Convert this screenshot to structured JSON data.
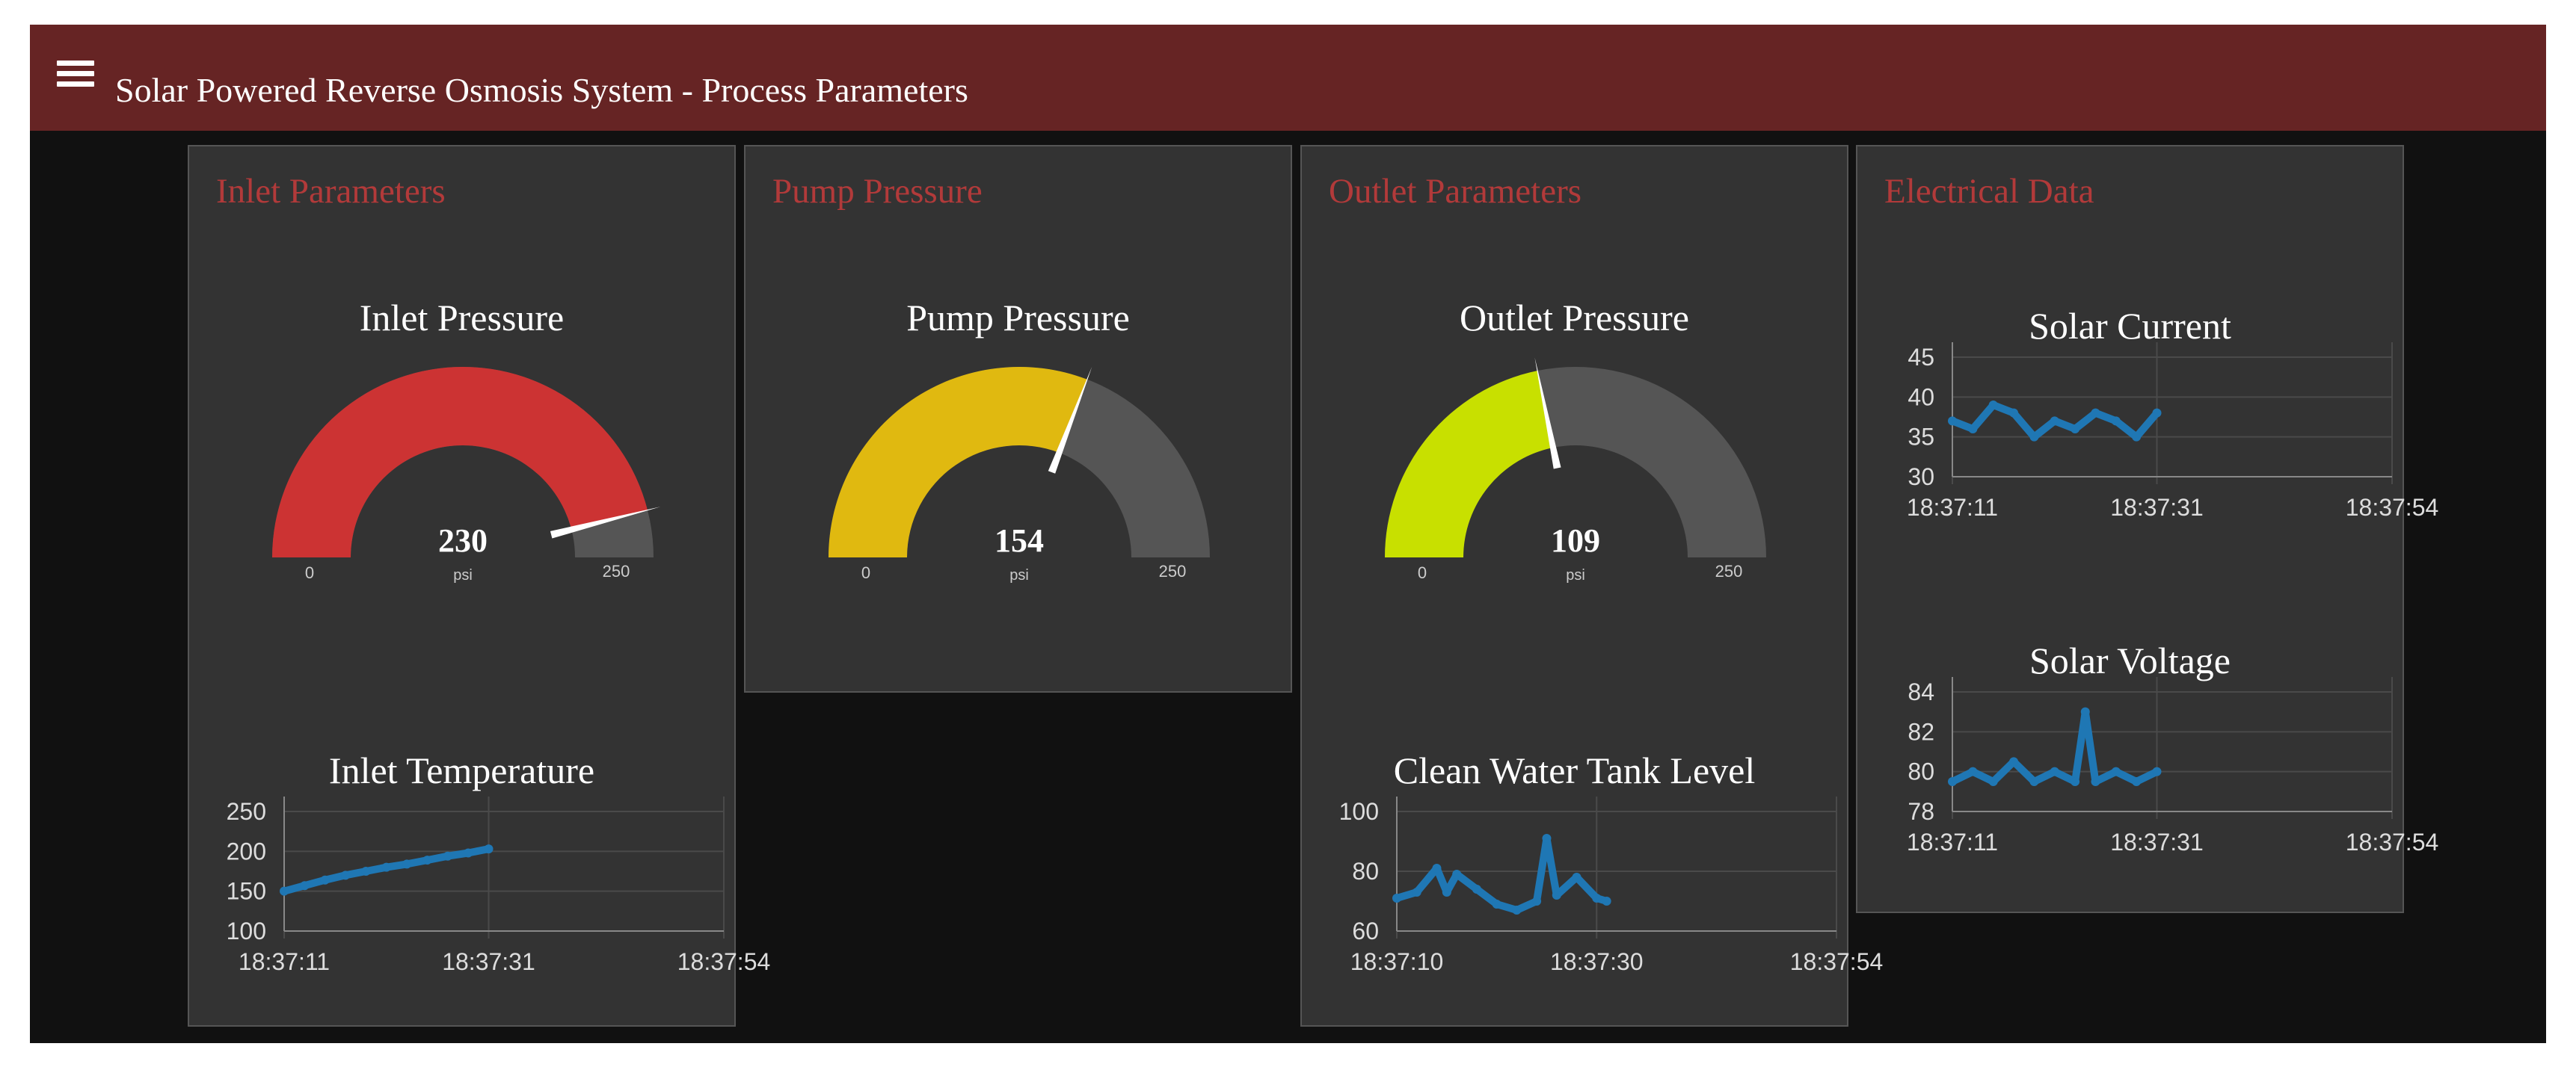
{
  "header": {
    "title": "Solar Powered Reverse Osmosis System - Process Parameters"
  },
  "cards": {
    "inlet": {
      "title": "Inlet Parameters",
      "gauge": {
        "label": "Inlet Pressure",
        "value": 230,
        "min": 0,
        "max": 250,
        "units": "psi",
        "color": "#cc3333"
      },
      "chart_title": "Inlet Temperature"
    },
    "pump": {
      "title": "Pump Pressure",
      "gauge": {
        "label": "Pump Pressure",
        "value": 154,
        "min": 0,
        "max": 250,
        "units": "psi",
        "color": "#e0b910"
      }
    },
    "outlet": {
      "title": "Outlet Parameters",
      "gauge": {
        "label": "Outlet Pressure",
        "value": 109,
        "min": 0,
        "max": 250,
        "units": "psi",
        "color": "#c8e000"
      },
      "chart_title": "Clean Water Tank Level"
    },
    "electrical": {
      "title": "Electrical Data",
      "chart_current_title": "Solar Current",
      "chart_voltage_title": "Solar Voltage"
    }
  },
  "colors": {
    "toolbar": "#662424",
    "card_header": "#b23a3a",
    "gauge_background": "#555555",
    "series": "#1f77b4"
  },
  "chart_data": [
    {
      "id": "inlet_temperature",
      "type": "line",
      "title": "Inlet Temperature",
      "x": [
        "18:37:11",
        "18:37:13",
        "18:37:15",
        "18:37:17",
        "18:37:19",
        "18:37:21",
        "18:37:23",
        "18:37:25",
        "18:37:27",
        "18:37:29",
        "18:37:31"
      ],
      "series": [
        {
          "values": [
            150,
            157,
            164,
            170,
            175,
            180,
            184,
            189,
            194,
            198,
            203
          ]
        }
      ],
      "ylim": [
        100,
        250
      ],
      "yticks": [
        100,
        150,
        200,
        250
      ],
      "xticks": [
        "18:37:11",
        "18:37:31",
        "18:37:54"
      ],
      "grid": true
    },
    {
      "id": "clean_water_tank_level",
      "type": "line",
      "title": "Clean Water Tank Level",
      "x": [
        "18:37:10",
        "18:37:12",
        "18:37:14",
        "18:37:15",
        "18:37:16",
        "18:37:18",
        "18:37:20",
        "18:37:22",
        "18:37:24",
        "18:37:25",
        "18:37:26",
        "18:37:28",
        "18:37:30",
        "18:37:31"
      ],
      "series": [
        {
          "values": [
            71,
            73,
            81,
            73,
            79,
            74,
            69,
            67,
            70,
            91,
            72,
            78,
            71,
            70
          ]
        }
      ],
      "ylim": [
        60,
        100
      ],
      "yticks": [
        60,
        80,
        100
      ],
      "xticks": [
        "18:37:10",
        "18:37:30",
        "18:37:54"
      ],
      "grid": true
    },
    {
      "id": "solar_current",
      "type": "line",
      "title": "Solar Current",
      "x": [
        "18:37:11",
        "18:37:13",
        "18:37:15",
        "18:37:17",
        "18:37:19",
        "18:37:21",
        "18:37:23",
        "18:37:25",
        "18:37:27",
        "18:37:29",
        "18:37:31"
      ],
      "series": [
        {
          "values": [
            37,
            36,
            39,
            38,
            35,
            37,
            36,
            38,
            37,
            35,
            38
          ]
        }
      ],
      "ylim": [
        30,
        45
      ],
      "yticks": [
        30,
        35,
        40,
        45
      ],
      "xticks": [
        "18:37:11",
        "18:37:31",
        "18:37:54"
      ],
      "grid": true
    },
    {
      "id": "solar_voltage",
      "type": "line",
      "title": "Solar Voltage",
      "x": [
        "18:37:11",
        "18:37:13",
        "18:37:15",
        "18:37:17",
        "18:37:19",
        "18:37:21",
        "18:37:23",
        "18:37:24",
        "18:37:25",
        "18:37:27",
        "18:37:29",
        "18:37:31"
      ],
      "series": [
        {
          "values": [
            79.5,
            80,
            79.5,
            80.5,
            79.5,
            80,
            79.5,
            83,
            79.5,
            80,
            79.5,
            80
          ]
        }
      ],
      "ylim": [
        78,
        84
      ],
      "yticks": [
        78,
        80,
        82,
        84
      ],
      "xticks": [
        "18:37:11",
        "18:37:31",
        "18:37:54"
      ],
      "grid": true
    }
  ]
}
